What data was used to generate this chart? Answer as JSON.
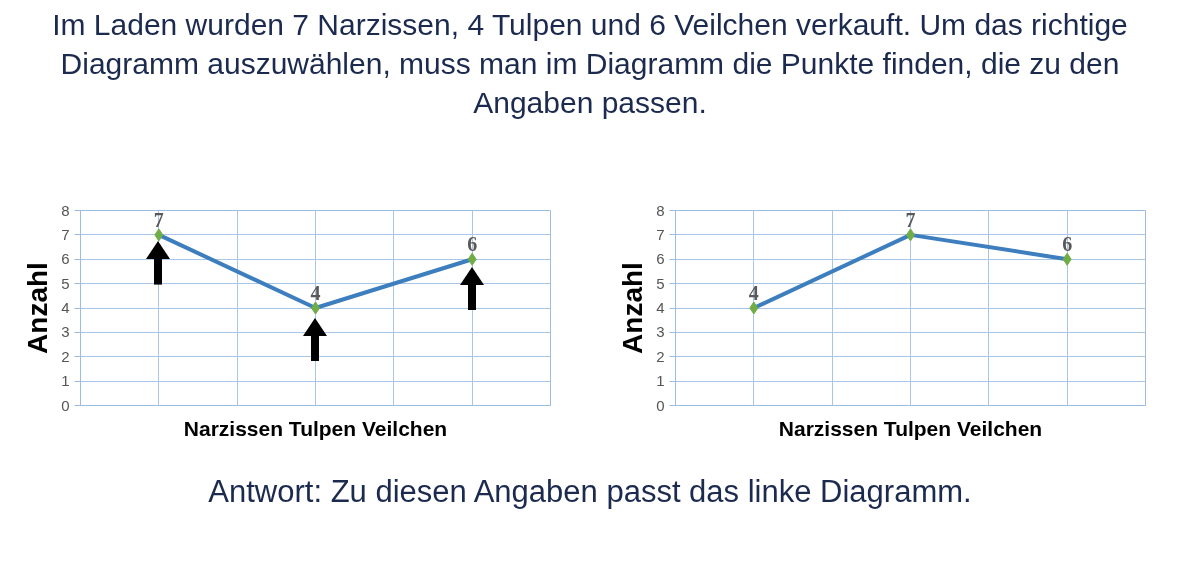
{
  "chart_data": [
    {
      "type": "line",
      "title": "Im Laden wurden 7 Narzissen, 4 Tulpen und 6 Veilchen verkauft. Um das richtige Diagramm auszuwählen, muss man im Diagramm die Punkte finden, die zu den Angaben passen.",
      "xlabel": "Narzissen Tulpen Veilchen",
      "ylabel": "Anzahl",
      "categories": [
        null,
        null,
        null
      ],
      "series": [
        {
          "color": "#3d7ebf",
          "colors": [
            "#70ad47",
            "#70ad47",
            "#70ad47"
          ],
          "values": [
            7,
            4,
            6
          ]
        }
      ],
      "ylim": [
        0,
        8
      ],
      "yticks": [
        0,
        1,
        2,
        3,
        4,
        5,
        6,
        7,
        8
      ],
      "grid": true,
      "marker": "diamond",
      "data_labels": true
    },
    {
      "type": "line",
      "xlabel": "Narzissen Tulpen Veilchen",
      "ylabel": "Anzahl",
      "categories": [
        null,
        null,
        null
      ],
      "series": [
        {
          "color": "#3d7ebf",
          "colors": [
            "#70ad47",
            "#70ad47",
            "#70ad47"
          ],
          "values": [
            4,
            7,
            6
          ]
        }
      ],
      "ylim": [
        0,
        8
      ],
      "yticks": [
        0,
        1,
        2,
        3,
        4,
        5,
        6,
        7,
        8
      ],
      "grid": true,
      "marker": "diamond",
      "data_labels": true,
      "annotations": [
        "Antwort: Zu diesen Angaben passt das linke Diagramm."
      ]
    }
  ]
}
